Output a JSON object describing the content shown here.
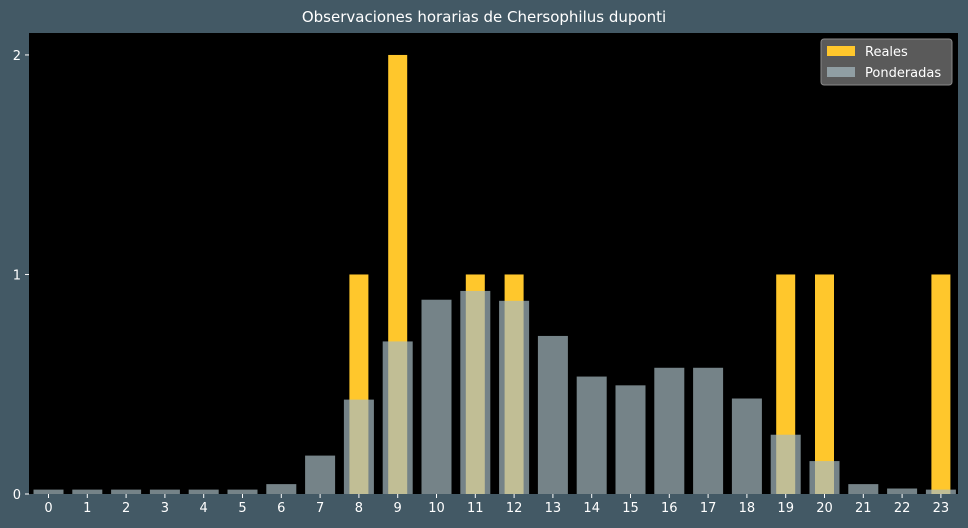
{
  "chart_data": {
    "type": "bar",
    "title": "Observaciones horarias de Chersophilus duponti",
    "xlabel": "",
    "ylabel": "",
    "categories": [
      "0",
      "1",
      "2",
      "3",
      "4",
      "5",
      "6",
      "7",
      "8",
      "9",
      "10",
      "11",
      "12",
      "13",
      "14",
      "15",
      "16",
      "17",
      "18",
      "19",
      "20",
      "21",
      "22",
      "23"
    ],
    "series": [
      {
        "name": "Reales",
        "color": "#ffc72c",
        "values": [
          0,
          0,
          0,
          0,
          0,
          0,
          0,
          0,
          1,
          2,
          0,
          1,
          1,
          0,
          0,
          0,
          0,
          0,
          0,
          1,
          1,
          0,
          0,
          1
        ]
      },
      {
        "name": "Ponderadas",
        "color": "#a7bbc2",
        "opacity": 0.7,
        "values": [
          0.02,
          0.02,
          0.02,
          0.02,
          0.02,
          0.02,
          0.045,
          0.175,
          0.43,
          0.695,
          0.885,
          0.925,
          0.88,
          0.72,
          0.535,
          0.495,
          0.575,
          0.575,
          0.435,
          0.27,
          0.15,
          0.045,
          0.025,
          0.02
        ]
      }
    ],
    "ylim": [
      0,
      2.1
    ],
    "yticks": [
      0,
      1,
      2
    ],
    "grid": false,
    "legend_position": "top-right",
    "background": "#000000",
    "figure_background": "#435965"
  }
}
